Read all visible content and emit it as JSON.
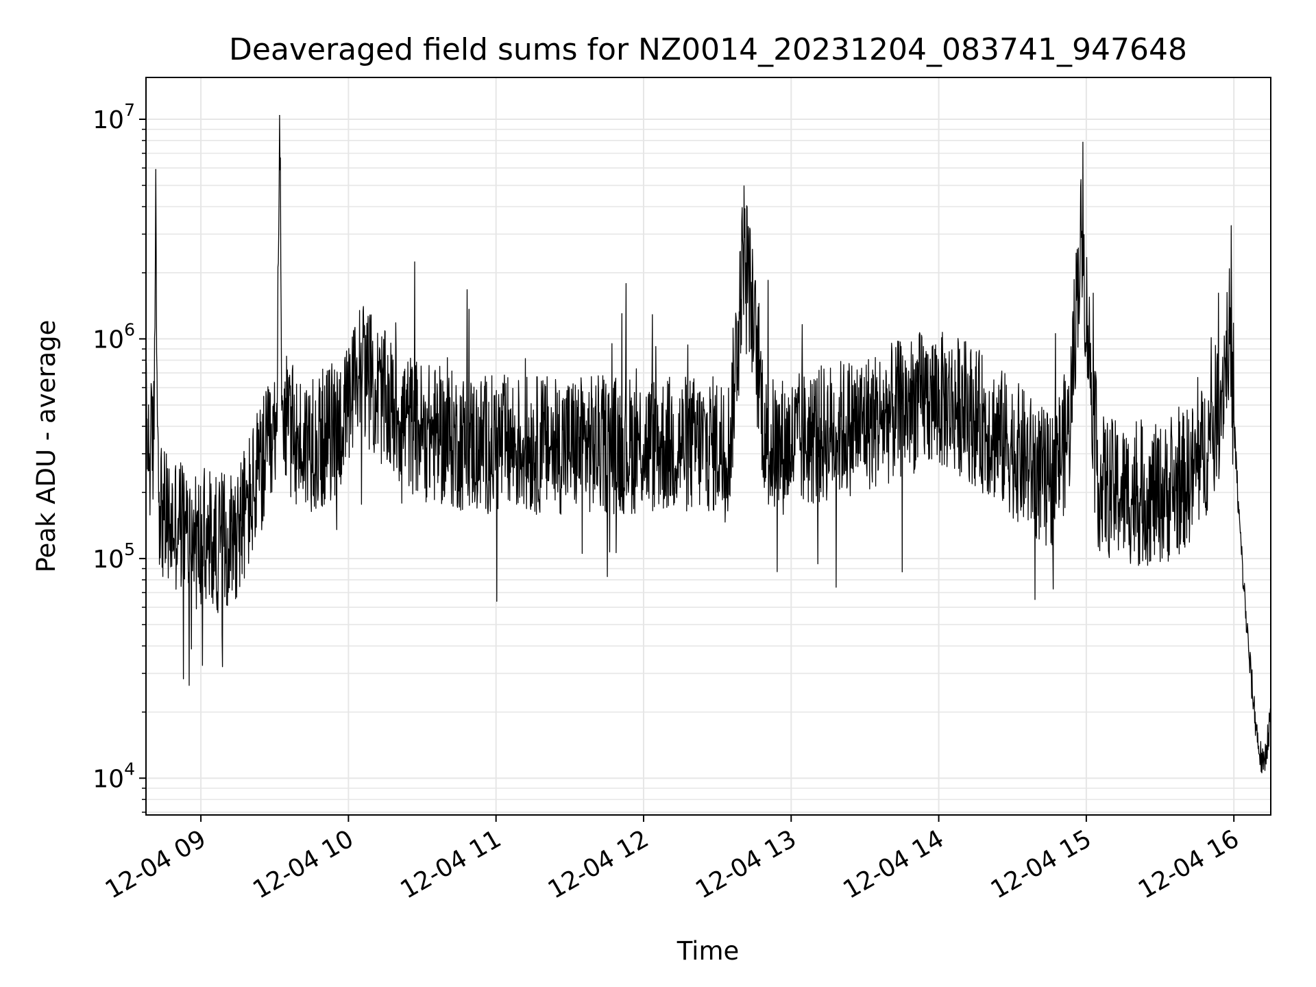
{
  "chart_data": {
    "type": "line",
    "title": "Deaveraged field sums for NZ0014_20231204_083741_947648",
    "xlabel": "Time",
    "ylabel": "Peak ADU - average",
    "yscale": "log",
    "ylim": [
      6800,
      15500000
    ],
    "xlim": [
      "12-04 08:37:41",
      "12-04 16:15:00"
    ],
    "grid": true,
    "line_color": "#000000",
    "x_ticks": [
      {
        "label": "12-04 09",
        "time": "12-04 09:00"
      },
      {
        "label": "12-04 10",
        "time": "12-04 10:00"
      },
      {
        "label": "12-04 11",
        "time": "12-04 11:00"
      },
      {
        "label": "12-04 12",
        "time": "12-04 12:00"
      },
      {
        "label": "12-04 13",
        "time": "12-04 13:00"
      },
      {
        "label": "12-04 14",
        "time": "12-04 14:00"
      },
      {
        "label": "12-04 15",
        "time": "12-04 15:00"
      },
      {
        "label": "12-04 16",
        "time": "12-04 16:00"
      }
    ],
    "y_ticks": [
      {
        "base": "10",
        "exp": "4",
        "value": 10000
      },
      {
        "base": "10",
        "exp": "5",
        "value": 100000
      },
      {
        "base": "10",
        "exp": "6",
        "value": 1000000
      },
      {
        "base": "10",
        "exp": "7",
        "value": 10000000
      }
    ],
    "series": [
      {
        "x": [
          "12-04 08:37:41",
          "12-04 08:39",
          "12-04 08:41",
          "12-04 08:41:40",
          "12-04 08:42:20",
          "12-04 08:43",
          "12-04 08:45",
          "12-04 08:48",
          "12-04 08:51",
          "12-04 08:54",
          "12-04 08:58",
          "12-04 09:03",
          "12-04 09:08",
          "12-04 09:13",
          "12-04 09:18",
          "12-04 09:23",
          "12-04 09:26",
          "12-04 09:29",
          "12-04 09:31",
          "12-04 09:32",
          "12-04 09:33",
          "12-04 09:35",
          "12-04 09:40",
          "12-04 09:50",
          "12-04 10:00",
          "12-04 10:05",
          "12-04 10:10",
          "12-04 10:20",
          "12-04 10:30",
          "12-04 10:45",
          "12-04 11:00",
          "12-04 11:20",
          "12-04 11:40",
          "12-04 12:00",
          "12-04 12:20",
          "12-04 12:35",
          "12-04 12:41",
          "12-04 12:50",
          "12-04 13:00",
          "12-04 13:20",
          "12-04 13:35",
          "12-04 13:45",
          "12-04 13:55",
          "12-04 14:10",
          "12-04 14:30",
          "12-04 14:45",
          "12-04 14:53",
          "12-04 14:56",
          "12-04 14:58",
          "12-04 15:05",
          "12-04 15:20",
          "12-04 15:35",
          "12-04 15:45",
          "12-04 15:50",
          "12-04 15:55",
          "12-04 15:58",
          "12-04 16:00",
          "12-04 16:02",
          "12-04 16:04",
          "12-04 16:06",
          "12-04 16:08",
          "12-04 16:10",
          "12-04 16:12",
          "12-04 16:15"
        ],
        "y": [
          420000,
          300000,
          350000,
          5900000,
          400000,
          200000,
          150000,
          140000,
          150000,
          130000,
          120000,
          110000,
          120000,
          130000,
          160000,
          230000,
          280000,
          310000,
          380000,
          10400000,
          550000,
          400000,
          330000,
          350000,
          450000,
          800000,
          600000,
          450000,
          380000,
          340000,
          330000,
          330000,
          330000,
          330000,
          330000,
          330000,
          2900000,
          320000,
          330000,
          390000,
          430000,
          480000,
          540000,
          490000,
          320000,
          220000,
          380000,
          1500000,
          2900000,
          220000,
          190000,
          200000,
          260000,
          350000,
          580000,
          1100000,
          420000,
          160000,
          75000,
          38000,
          22000,
          14000,
          11000,
          19000
        ]
      }
    ]
  }
}
